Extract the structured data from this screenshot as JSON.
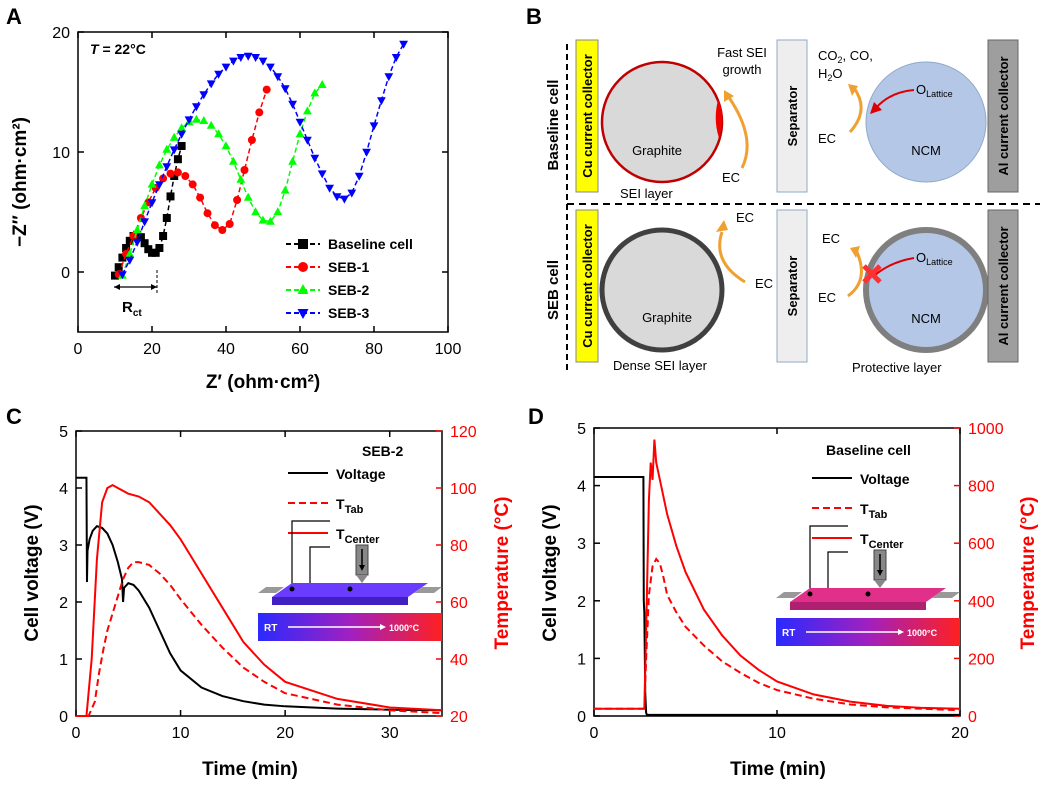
{
  "panels": {
    "a": "A",
    "b": "B",
    "c": "C",
    "d": "D"
  },
  "chart_data": [
    {
      "id": "A",
      "type": "scatter",
      "title": "",
      "annotation_T_symbol": "T",
      "annotation_T_value": " = 22°C",
      "rct_label": "R",
      "rct_sub": "ct",
      "xlabel": "Z′ (ohm·cm²)",
      "ylabel": "−Z″ (ohm·cm²)",
      "xlim": [
        0,
        100
      ],
      "ylim": [
        -5,
        20
      ],
      "xticks": [
        "0",
        "20",
        "40",
        "60",
        "80",
        "100"
      ],
      "yticks": [
        "0",
        "10",
        "20"
      ],
      "series": [
        {
          "name": "Baseline cell",
          "color": "#000000",
          "marker": "square",
          "x": [
            10,
            11,
            12,
            13,
            14,
            15,
            16,
            17,
            18,
            19,
            20,
            21,
            22,
            23,
            24,
            25,
            26,
            27,
            28
          ],
          "y": [
            -0.3,
            0.4,
            1.2,
            2.0,
            2.6,
            3.0,
            3.1,
            2.9,
            2.4,
            1.9,
            1.6,
            1.6,
            2.0,
            3.0,
            4.5,
            6.3,
            8.0,
            9.4,
            10.5
          ]
        },
        {
          "name": "SEB-1",
          "color": "#ff0000",
          "marker": "circle",
          "x": [
            11,
            13,
            15,
            17,
            19,
            21,
            23,
            25,
            27,
            29,
            31,
            33,
            35,
            37,
            39,
            41,
            43,
            45,
            47,
            49,
            51
          ],
          "y": [
            -0.2,
            1.5,
            3.0,
            4.5,
            5.8,
            7.0,
            7.8,
            8.2,
            8.3,
            8.0,
            7.3,
            6.2,
            4.9,
            3.9,
            3.5,
            4.0,
            6.0,
            8.5,
            11.0,
            13.3,
            15.2
          ]
        },
        {
          "name": "SEB-2",
          "color": "#00ff00",
          "marker": "triangle-up",
          "x": [
            12,
            14,
            16,
            18,
            20,
            22,
            24,
            26,
            28,
            30,
            32,
            34,
            36,
            38,
            40,
            42,
            44,
            46,
            48,
            50,
            52,
            54,
            56,
            58,
            60,
            62,
            64,
            66
          ],
          "y": [
            -0.3,
            1.5,
            3.5,
            5.5,
            7.3,
            8.9,
            10.2,
            11.2,
            12.0,
            12.5,
            12.7,
            12.6,
            12.2,
            11.5,
            10.5,
            9.2,
            7.7,
            6.2,
            5.0,
            4.3,
            4.2,
            5.0,
            6.8,
            9.2,
            11.5,
            13.4,
            14.9,
            15.6
          ]
        },
        {
          "name": "SEB-3",
          "color": "#0000ff",
          "marker": "triangle-down",
          "x": [
            12,
            14,
            16,
            18,
            20,
            22,
            24,
            26,
            28,
            30,
            32,
            34,
            36,
            38,
            40,
            42,
            44,
            46,
            48,
            50,
            52,
            54,
            56,
            58,
            60,
            62,
            64,
            66,
            68,
            70,
            72,
            74,
            76,
            78,
            80,
            82,
            84,
            86,
            88
          ],
          "y": [
            -0.2,
            1.0,
            2.5,
            4.2,
            5.8,
            7.3,
            8.8,
            10.2,
            11.5,
            12.7,
            13.8,
            14.8,
            15.7,
            16.5,
            17.1,
            17.6,
            17.9,
            18.0,
            17.9,
            17.6,
            17.1,
            16.3,
            15.3,
            14.0,
            12.5,
            11.0,
            9.5,
            8.2,
            7.0,
            6.3,
            6.1,
            6.6,
            8.0,
            10.0,
            12.2,
            14.3,
            16.3,
            17.9,
            19.0
          ]
        }
      ]
    },
    {
      "id": "C",
      "type": "line",
      "series_title": "SEB-2",
      "xlabel": "Time (min)",
      "ylabel": "Cell voltage (V)",
      "y2label": "Temperature (°C)",
      "xlim": [
        0,
        35
      ],
      "ylim": [
        0,
        5
      ],
      "y2lim": [
        20,
        120
      ],
      "xticks": [
        "0",
        "10",
        "20",
        "30"
      ],
      "yticks": [
        "0",
        "1",
        "2",
        "3",
        "4",
        "5"
      ],
      "y2ticks": [
        "20",
        "40",
        "60",
        "80",
        "100",
        "120"
      ],
      "legend": [
        {
          "label": "Voltage",
          "sub": "",
          "style": "solid",
          "color": "#000000"
        },
        {
          "label": "T",
          "sub": "Tab",
          "style": "dashed",
          "color": "#ff0000"
        },
        {
          "label": "T",
          "sub": "Center",
          "style": "solid",
          "color": "#ff0000"
        }
      ],
      "inset_left": "RT",
      "inset_right": "1000°C",
      "series": [
        {
          "name": "Voltage",
          "axis": "left",
          "color": "#000000",
          "dash": false,
          "x": [
            0,
            1.0,
            1.05,
            1.1,
            1.3,
            1.6,
            2.0,
            2.5,
            3.0,
            3.5,
            4.0,
            4.4,
            4.5,
            4.6,
            5.0,
            5.5,
            6.0,
            7,
            8,
            9,
            10,
            12,
            14,
            16,
            18,
            20,
            25,
            30,
            35
          ],
          "y": [
            4.18,
            4.18,
            2.35,
            2.9,
            3.1,
            3.25,
            3.33,
            3.3,
            3.2,
            3.0,
            2.7,
            2.4,
            2.0,
            2.25,
            2.33,
            2.3,
            2.2,
            1.9,
            1.5,
            1.1,
            0.8,
            0.5,
            0.35,
            0.26,
            0.2,
            0.17,
            0.13,
            0.11,
            0.1
          ]
        },
        {
          "name": "T_Tab",
          "axis": "right",
          "color": "#ff0000",
          "dash": true,
          "x": [
            0,
            1.2,
            1.8,
            2.2,
            2.6,
            3.0,
            3.5,
            4.0,
            4.5,
            5.0,
            5.5,
            6.0,
            7,
            8,
            9,
            10,
            12,
            14,
            16,
            18,
            20,
            25,
            30,
            35
          ],
          "y": [
            20,
            20,
            25,
            35,
            43,
            50,
            56,
            62,
            68,
            72,
            74,
            74,
            73,
            70,
            66,
            61,
            52,
            44,
            37,
            32,
            28,
            24,
            22,
            21
          ]
        },
        {
          "name": "T_Center",
          "axis": "right",
          "color": "#ff0000",
          "dash": false,
          "x": [
            0,
            1.0,
            1.5,
            2.0,
            2.5,
            3.0,
            3.5,
            4.0,
            5,
            6,
            7,
            8,
            9,
            10,
            11,
            12,
            14,
            16,
            18,
            20,
            25,
            30,
            35
          ],
          "y": [
            20,
            20,
            40,
            75,
            95,
            100,
            101,
            100,
            98,
            97,
            95,
            91,
            87,
            82,
            76,
            70,
            58,
            46,
            38,
            32,
            26,
            23,
            22
          ]
        }
      ]
    },
    {
      "id": "D",
      "type": "line",
      "series_title": "Baseline cell",
      "xlabel": "Time (min)",
      "ylabel": "Cell voltage (V)",
      "y2label": "Temperature (°C)",
      "xlim": [
        0,
        20
      ],
      "ylim": [
        0,
        5
      ],
      "y2lim": [
        0,
        1000
      ],
      "xticks": [
        "0",
        "10",
        "20"
      ],
      "yticks": [
        "0",
        "1",
        "2",
        "3",
        "4",
        "5"
      ],
      "y2ticks": [
        "0",
        "200",
        "400",
        "600",
        "800",
        "1000"
      ],
      "legend": [
        {
          "label": "Voltage",
          "sub": "",
          "style": "solid",
          "color": "#000000"
        },
        {
          "label": "T",
          "sub": "Tab",
          "style": "dashed",
          "color": "#ff0000"
        },
        {
          "label": "T",
          "sub": "Center",
          "style": "solid",
          "color": "#ff0000"
        }
      ],
      "inset_left": "RT",
      "inset_right": "1000°C",
      "series": [
        {
          "name": "Voltage",
          "axis": "left",
          "color": "#000000",
          "dash": false,
          "x": [
            0,
            2.7,
            2.72,
            2.75,
            2.8,
            2.85,
            2.9,
            20
          ],
          "y": [
            4.15,
            4.15,
            2.0,
            1.8,
            0.4,
            0.05,
            0.02,
            0.02
          ]
        },
        {
          "name": "T_Tab",
          "axis": "right",
          "color": "#ff0000",
          "dash": true,
          "x": [
            0,
            2.75,
            2.85,
            3.0,
            3.2,
            3.4,
            3.6,
            3.8,
            4,
            4.5,
            5,
            6,
            7,
            8,
            9,
            10,
            12,
            14,
            16,
            18,
            20
          ],
          "y": [
            25,
            25,
            200,
            420,
            520,
            545,
            530,
            480,
            420,
            360,
            310,
            245,
            190,
            150,
            115,
            90,
            60,
            40,
            30,
            25,
            20
          ]
        },
        {
          "name": "T_Center",
          "axis": "right",
          "color": "#ff0000",
          "dash": false,
          "x": [
            0,
            2.75,
            2.85,
            3.0,
            3.1,
            3.2,
            3.3,
            3.4,
            3.5,
            3.7,
            4,
            4.5,
            5,
            6,
            7,
            8,
            9,
            10,
            12,
            14,
            16,
            18,
            20
          ],
          "y": [
            25,
            25,
            300,
            750,
            880,
            820,
            960,
            880,
            850,
            790,
            700,
            590,
            500,
            370,
            280,
            210,
            160,
            120,
            75,
            50,
            35,
            28,
            25
          ]
        }
      ]
    }
  ],
  "diagram": {
    "row_baseline": "Baseline cell",
    "row_seb": "SEB cell",
    "cu_collector": "Cu current collector",
    "al_collector": "Al current collector",
    "separator": "Separator",
    "graphite": "Graphite",
    "ncm": "NCM",
    "fast_sei_1": "Fast SEI",
    "fast_sei_2": "growth",
    "gas_1": "CO",
    "gas_1_sub": "2",
    "gas_2": ", CO,",
    "gas_3": "H",
    "gas_3_sub": "2",
    "gas_4": "O",
    "o_lattice": "O",
    "o_lattice_sub": "Lattice",
    "ec": "EC",
    "sei_layer": "SEI layer",
    "dense_sei": "Dense SEI layer",
    "protective": "Protective layer"
  },
  "colors": {
    "black": "#000000",
    "red": "#ff0000",
    "green": "#00ff00",
    "blue": "#0000ff",
    "collector": "#ffff00",
    "al": "#9e9e9e",
    "graphite": "#d9d9d9",
    "ncm": "#b4c7e7"
  }
}
